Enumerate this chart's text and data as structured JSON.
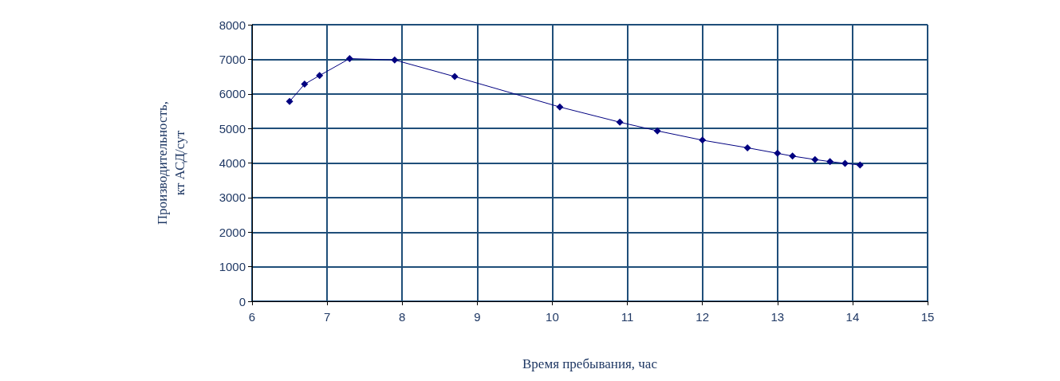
{
  "chart_data": {
    "type": "line",
    "xlabel": "Время пребывания, час",
    "ylabel": "Производительность,\nкт АСД/сут",
    "x": [
      6.5,
      6.7,
      6.9,
      7.3,
      7.9,
      8.7,
      10.1,
      10.9,
      11.4,
      12,
      12.6,
      13,
      13.2,
      13.5,
      13.7,
      13.9,
      14.1
    ],
    "values": [
      5780,
      6280,
      6530,
      7020,
      6980,
      6500,
      5620,
      5180,
      4930,
      4660,
      4440,
      4280,
      4200,
      4100,
      4040,
      3990,
      3940
    ],
    "color": "#000080",
    "marker": "diamond",
    "line_style": "solid",
    "xlim": [
      6,
      15
    ],
    "xticks": [
      6,
      7,
      8,
      9,
      10,
      11,
      12,
      13,
      14,
      15
    ],
    "ylim": [
      0,
      8000
    ],
    "yticks": [
      0,
      1000,
      2000,
      3000,
      4000,
      5000,
      6000,
      7000,
      8000
    ],
    "grid": true
  }
}
